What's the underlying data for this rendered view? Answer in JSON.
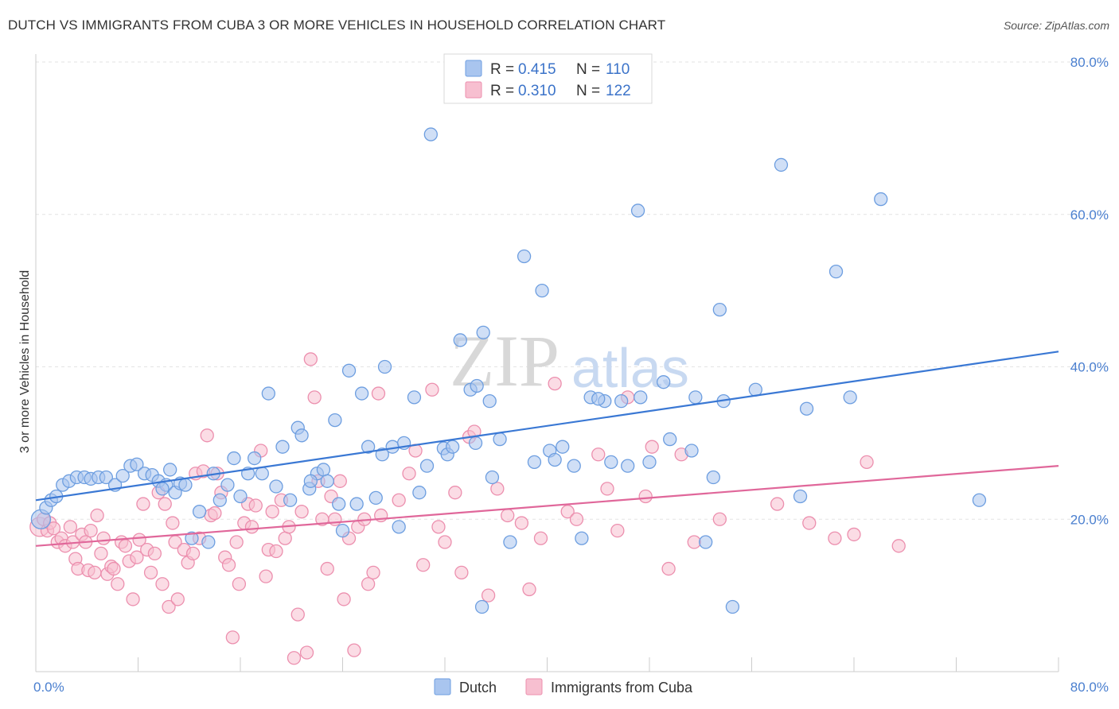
{
  "title": "DUTCH VS IMMIGRANTS FROM CUBA 3 OR MORE VEHICLES IN HOUSEHOLD CORRELATION CHART",
  "source": "Source: ZipAtlas.com",
  "watermark": {
    "zip": "ZIP",
    "atlas": "atlas"
  },
  "colors": {
    "dutch_fill": "#a9c5ef",
    "dutch_stroke": "#6d9ee0",
    "dutch_line": "#3a78d4",
    "cuba_fill": "#f7bfd0",
    "cuba_stroke": "#ec8fae",
    "cuba_line": "#e0679a",
    "axis_text": "#4a7fcf",
    "grid": "#e3e3e3"
  },
  "legend": {
    "dutch": {
      "r_label": "R = ",
      "r_value": "0.415",
      "n_label": "N = ",
      "n_value": "110"
    },
    "cuba": {
      "r_label": "R = ",
      "r_value": "0.310",
      "n_label": "N = ",
      "n_value": "122"
    }
  },
  "chart_data": {
    "type": "scatter",
    "title": "DUTCH VS IMMIGRANTS FROM CUBA 3 OR MORE VEHICLES IN HOUSEHOLD CORRELATION CHART",
    "xlabel": "",
    "ylabel": "3 or more Vehicles in Household",
    "xlim": [
      0,
      80
    ],
    "ylim": [
      0,
      80
    ],
    "x_tick_labels": [
      "0.0%",
      "80.0%"
    ],
    "y_tick_labels": [
      "20.0%",
      "40.0%",
      "60.0%",
      "80.0%"
    ],
    "y_ticks": [
      20,
      40,
      60,
      80
    ],
    "grid": true,
    "legend_position": "top-center",
    "series": [
      {
        "name": "Dutch",
        "r": 0.415,
        "n": 110,
        "trend": {
          "x": [
            0,
            80
          ],
          "y": [
            22.5,
            42.0
          ]
        },
        "points": [
          [
            0.4,
            20.0
          ],
          [
            0.8,
            21.5
          ],
          [
            1.2,
            22.5
          ],
          [
            1.6,
            23.0
          ],
          [
            2.1,
            24.5
          ],
          [
            2.6,
            25.0
          ],
          [
            3.2,
            25.5
          ],
          [
            3.8,
            25.5
          ],
          [
            4.3,
            25.3
          ],
          [
            4.9,
            25.5
          ],
          [
            5.5,
            25.5
          ],
          [
            6.2,
            24.5
          ],
          [
            6.8,
            25.7
          ],
          [
            7.4,
            27.0
          ],
          [
            7.9,
            27.2
          ],
          [
            8.5,
            26.0
          ],
          [
            9.1,
            25.8
          ],
          [
            9.6,
            25.0
          ],
          [
            10.2,
            24.5
          ],
          [
            10.5,
            26.5
          ],
          [
            10.9,
            23.5
          ],
          [
            11.3,
            24.7
          ],
          [
            11.7,
            24.5
          ],
          [
            12.2,
            17.5
          ],
          [
            12.8,
            21.0
          ],
          [
            13.5,
            17.0
          ],
          [
            13.9,
            26.0
          ],
          [
            14.4,
            22.5
          ],
          [
            15.0,
            24.5
          ],
          [
            15.5,
            28.0
          ],
          [
            16.0,
            23.0
          ],
          [
            16.6,
            26.0
          ],
          [
            17.1,
            28.0
          ],
          [
            17.7,
            26.0
          ],
          [
            18.2,
            36.5
          ],
          [
            18.8,
            24.3
          ],
          [
            19.3,
            29.5
          ],
          [
            19.9,
            22.5
          ],
          [
            20.5,
            32.0
          ],
          [
            20.8,
            31.0
          ],
          [
            21.4,
            24.0
          ],
          [
            22.0,
            26.0
          ],
          [
            22.5,
            26.5
          ],
          [
            22.8,
            25.0
          ],
          [
            23.4,
            33.0
          ],
          [
            23.7,
            22.0
          ],
          [
            24.0,
            18.5
          ],
          [
            24.5,
            39.5
          ],
          [
            25.1,
            22.0
          ],
          [
            25.5,
            36.5
          ],
          [
            26.0,
            29.5
          ],
          [
            26.6,
            22.8
          ],
          [
            27.1,
            28.5
          ],
          [
            27.3,
            40.0
          ],
          [
            27.9,
            29.5
          ],
          [
            28.4,
            19.0
          ],
          [
            28.8,
            30.0
          ],
          [
            29.6,
            36.0
          ],
          [
            30.0,
            23.5
          ],
          [
            30.6,
            27.0
          ],
          [
            30.9,
            70.5
          ],
          [
            31.9,
            29.3
          ],
          [
            32.2,
            28.5
          ],
          [
            32.6,
            29.5
          ],
          [
            33.2,
            43.5
          ],
          [
            34.0,
            37.0
          ],
          [
            34.4,
            30.0
          ],
          [
            34.9,
            8.5
          ],
          [
            34.5,
            37.5
          ],
          [
            35.0,
            44.5
          ],
          [
            35.5,
            35.5
          ],
          [
            35.7,
            25.5
          ],
          [
            36.3,
            30.5
          ],
          [
            37.1,
            17.0
          ],
          [
            38.2,
            54.5
          ],
          [
            39.0,
            27.5
          ],
          [
            39.6,
            50.0
          ],
          [
            40.2,
            29.0
          ],
          [
            40.6,
            27.8
          ],
          [
            41.2,
            29.5
          ],
          [
            42.1,
            27.0
          ],
          [
            42.7,
            17.5
          ],
          [
            43.4,
            36.0
          ],
          [
            44.5,
            35.5
          ],
          [
            45.0,
            27.5
          ],
          [
            45.8,
            35.5
          ],
          [
            46.3,
            27.0
          ],
          [
            47.1,
            60.5
          ],
          [
            47.3,
            36.0
          ],
          [
            48.0,
            27.5
          ],
          [
            49.1,
            38.0
          ],
          [
            49.6,
            30.5
          ],
          [
            51.3,
            29.0
          ],
          [
            51.6,
            36.0
          ],
          [
            52.4,
            17.0
          ],
          [
            53.0,
            25.5
          ],
          [
            53.5,
            47.5
          ],
          [
            53.8,
            35.5
          ],
          [
            54.5,
            8.5
          ],
          [
            56.3,
            37.0
          ],
          [
            58.3,
            66.5
          ],
          [
            59.8,
            23.0
          ],
          [
            60.3,
            34.5
          ],
          [
            62.6,
            52.5
          ],
          [
            63.7,
            36.0
          ],
          [
            66.1,
            62.0
          ],
          [
            73.8,
            22.5
          ],
          [
            44.0,
            35.8
          ],
          [
            21.5,
            25.0
          ],
          [
            9.9,
            24.0
          ]
        ]
      },
      {
        "name": "Immigrants from Cuba",
        "r": 0.31,
        "n": 122,
        "trend": {
          "x": [
            0,
            80
          ],
          "y": [
            16.5,
            27.0
          ]
        },
        "points": [
          [
            0.3,
            19.0
          ],
          [
            0.6,
            20.0
          ],
          [
            0.9,
            18.5
          ],
          [
            1.1,
            19.5
          ],
          [
            1.4,
            18.8
          ],
          [
            1.7,
            17.0
          ],
          [
            2.0,
            17.5
          ],
          [
            2.3,
            16.5
          ],
          [
            2.7,
            19.0
          ],
          [
            2.9,
            17.0
          ],
          [
            3.1,
            14.8
          ],
          [
            3.3,
            13.5
          ],
          [
            3.6,
            18.0
          ],
          [
            3.9,
            17.0
          ],
          [
            4.1,
            13.3
          ],
          [
            4.3,
            18.5
          ],
          [
            4.6,
            13.0
          ],
          [
            4.8,
            20.5
          ],
          [
            5.1,
            15.5
          ],
          [
            5.3,
            17.5
          ],
          [
            5.6,
            12.8
          ],
          [
            5.9,
            13.8
          ],
          [
            6.1,
            13.5
          ],
          [
            6.4,
            11.5
          ],
          [
            6.7,
            17.0
          ],
          [
            7.0,
            16.5
          ],
          [
            7.3,
            14.5
          ],
          [
            7.6,
            9.5
          ],
          [
            7.9,
            15.0
          ],
          [
            8.1,
            17.3
          ],
          [
            8.4,
            22.0
          ],
          [
            8.7,
            16.0
          ],
          [
            9.0,
            13.0
          ],
          [
            9.3,
            15.5
          ],
          [
            9.6,
            23.5
          ],
          [
            9.9,
            11.5
          ],
          [
            10.1,
            22.0
          ],
          [
            10.4,
            8.5
          ],
          [
            10.7,
            19.5
          ],
          [
            10.9,
            17.0
          ],
          [
            11.1,
            9.5
          ],
          [
            11.6,
            16.0
          ],
          [
            11.9,
            14.3
          ],
          [
            12.3,
            15.5
          ],
          [
            12.5,
            26.0
          ],
          [
            12.8,
            17.5
          ],
          [
            13.1,
            26.3
          ],
          [
            13.4,
            31.0
          ],
          [
            13.7,
            20.5
          ],
          [
            14.0,
            20.8
          ],
          [
            14.2,
            26.0
          ],
          [
            14.5,
            23.5
          ],
          [
            14.8,
            15.0
          ],
          [
            15.1,
            14.0
          ],
          [
            15.4,
            4.5
          ],
          [
            15.7,
            17.0
          ],
          [
            15.9,
            11.5
          ],
          [
            16.3,
            19.5
          ],
          [
            16.6,
            22.0
          ],
          [
            16.9,
            19.0
          ],
          [
            17.2,
            21.8
          ],
          [
            17.6,
            29.0
          ],
          [
            18.0,
            12.5
          ],
          [
            18.2,
            16.0
          ],
          [
            18.5,
            21.0
          ],
          [
            18.8,
            15.8
          ],
          [
            19.2,
            22.5
          ],
          [
            19.5,
            17.5
          ],
          [
            19.8,
            19.0
          ],
          [
            20.2,
            1.8
          ],
          [
            20.5,
            7.5
          ],
          [
            20.8,
            21.0
          ],
          [
            21.2,
            2.5
          ],
          [
            21.5,
            41.0
          ],
          [
            21.8,
            36.0
          ],
          [
            22.1,
            25.0
          ],
          [
            22.4,
            20.0
          ],
          [
            22.8,
            13.5
          ],
          [
            23.1,
            23.0
          ],
          [
            23.4,
            20.0
          ],
          [
            23.8,
            25.0
          ],
          [
            24.1,
            9.5
          ],
          [
            24.5,
            17.5
          ],
          [
            24.9,
            2.8
          ],
          [
            25.2,
            19.0
          ],
          [
            25.7,
            20.0
          ],
          [
            26.0,
            11.5
          ],
          [
            26.4,
            13.0
          ],
          [
            26.8,
            36.5
          ],
          [
            27.0,
            20.5
          ],
          [
            28.4,
            22.5
          ],
          [
            29.2,
            26.0
          ],
          [
            29.7,
            29.0
          ],
          [
            30.3,
            14.0
          ],
          [
            31.0,
            37.0
          ],
          [
            31.5,
            19.0
          ],
          [
            32.0,
            17.0
          ],
          [
            32.8,
            23.5
          ],
          [
            33.3,
            13.0
          ],
          [
            33.9,
            30.8
          ],
          [
            34.3,
            31.5
          ],
          [
            35.4,
            10.0
          ],
          [
            36.1,
            24.0
          ],
          [
            36.9,
            20.5
          ],
          [
            38.0,
            19.5
          ],
          [
            38.6,
            10.8
          ],
          [
            39.5,
            17.5
          ],
          [
            40.6,
            37.8
          ],
          [
            41.6,
            21.0
          ],
          [
            42.3,
            20.0
          ],
          [
            44.0,
            28.5
          ],
          [
            44.7,
            24.0
          ],
          [
            45.5,
            18.5
          ],
          [
            46.3,
            36.0
          ],
          [
            47.7,
            23.0
          ],
          [
            48.2,
            29.5
          ],
          [
            49.5,
            13.5
          ],
          [
            50.5,
            28.5
          ],
          [
            51.5,
            17.0
          ],
          [
            53.5,
            20.0
          ],
          [
            58.0,
            22.0
          ],
          [
            60.5,
            19.5
          ],
          [
            62.5,
            17.5
          ],
          [
            64.0,
            18.0
          ],
          [
            65.0,
            27.5
          ],
          [
            67.5,
            16.5
          ]
        ]
      }
    ]
  }
}
